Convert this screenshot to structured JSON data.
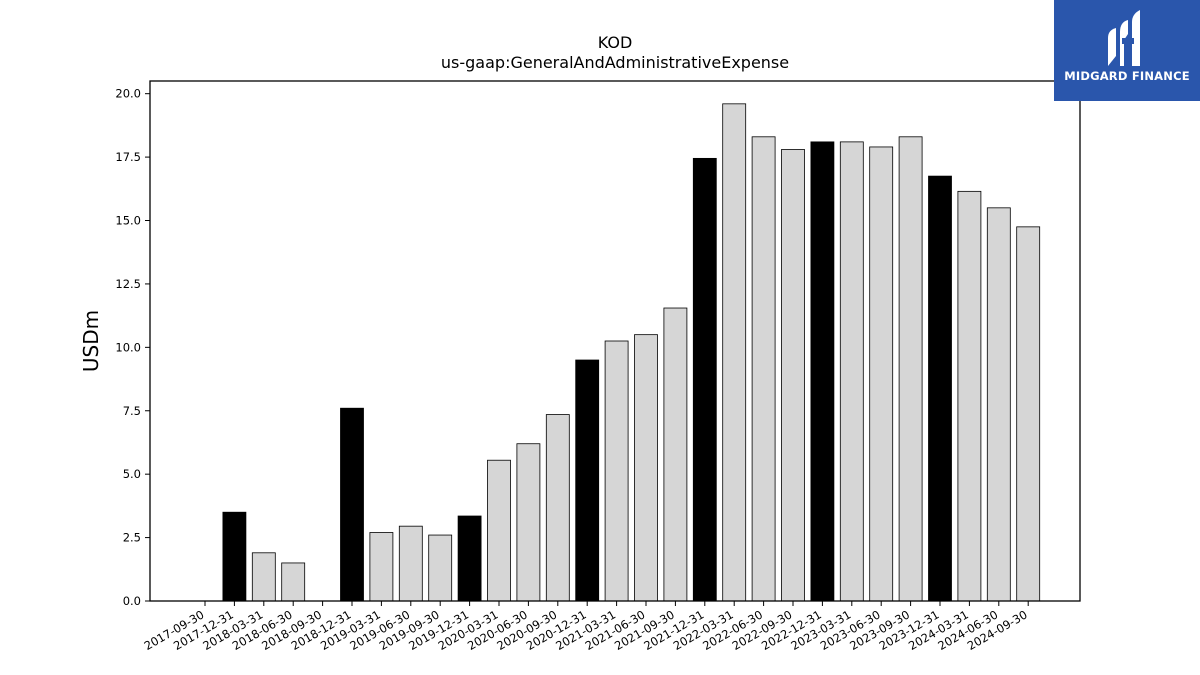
{
  "brand": {
    "name": "MIDGARD FINANCE",
    "logo_icon": "midgard-mark-icon",
    "color": "#2a56ac"
  },
  "chart_data": {
    "type": "bar",
    "title": "KOD",
    "subtitle": "us-gaap:GeneralAndAdministrativeExpense",
    "xlabel": "",
    "ylabel": "USDm",
    "ylim": [
      0,
      20.5
    ],
    "yticks": [
      "0.0",
      "2.5",
      "5.0",
      "7.5",
      "10.0",
      "12.5",
      "15.0",
      "17.5",
      "20.0"
    ],
    "grid": false,
    "colors": {
      "annual": "#000000",
      "quarterly": "#d6d6d6",
      "edge": "#000000"
    },
    "categories": [
      "2017-09-30",
      "2017-12-31",
      "2018-03-31",
      "2018-06-30",
      "2018-09-30",
      "2018-12-31",
      "2019-03-31",
      "2019-06-30",
      "2019-09-30",
      "2019-12-31",
      "2020-03-31",
      "2020-06-30",
      "2020-09-30",
      "2020-12-31",
      "2021-03-31",
      "2021-06-30",
      "2021-09-30",
      "2021-12-31",
      "2022-03-31",
      "2022-06-30",
      "2022-09-30",
      "2022-12-31",
      "2023-03-31",
      "2023-06-30",
      "2023-09-30",
      "2023-12-31",
      "2024-03-31",
      "2024-06-30",
      "2024-09-30"
    ],
    "values": [
      null,
      3.5,
      1.9,
      1.5,
      null,
      7.6,
      2.7,
      2.95,
      2.6,
      3.35,
      5.55,
      6.2,
      7.35,
      9.5,
      10.25,
      10.5,
      11.55,
      17.45,
      19.6,
      18.3,
      17.8,
      18.1,
      18.1,
      17.9,
      18.3,
      16.75,
      16.15,
      15.5,
      14.75
    ],
    "annual": [
      false,
      true,
      false,
      false,
      false,
      true,
      false,
      false,
      false,
      true,
      false,
      false,
      false,
      true,
      false,
      false,
      false,
      true,
      false,
      false,
      false,
      true,
      false,
      false,
      false,
      true,
      false,
      false,
      false
    ]
  }
}
